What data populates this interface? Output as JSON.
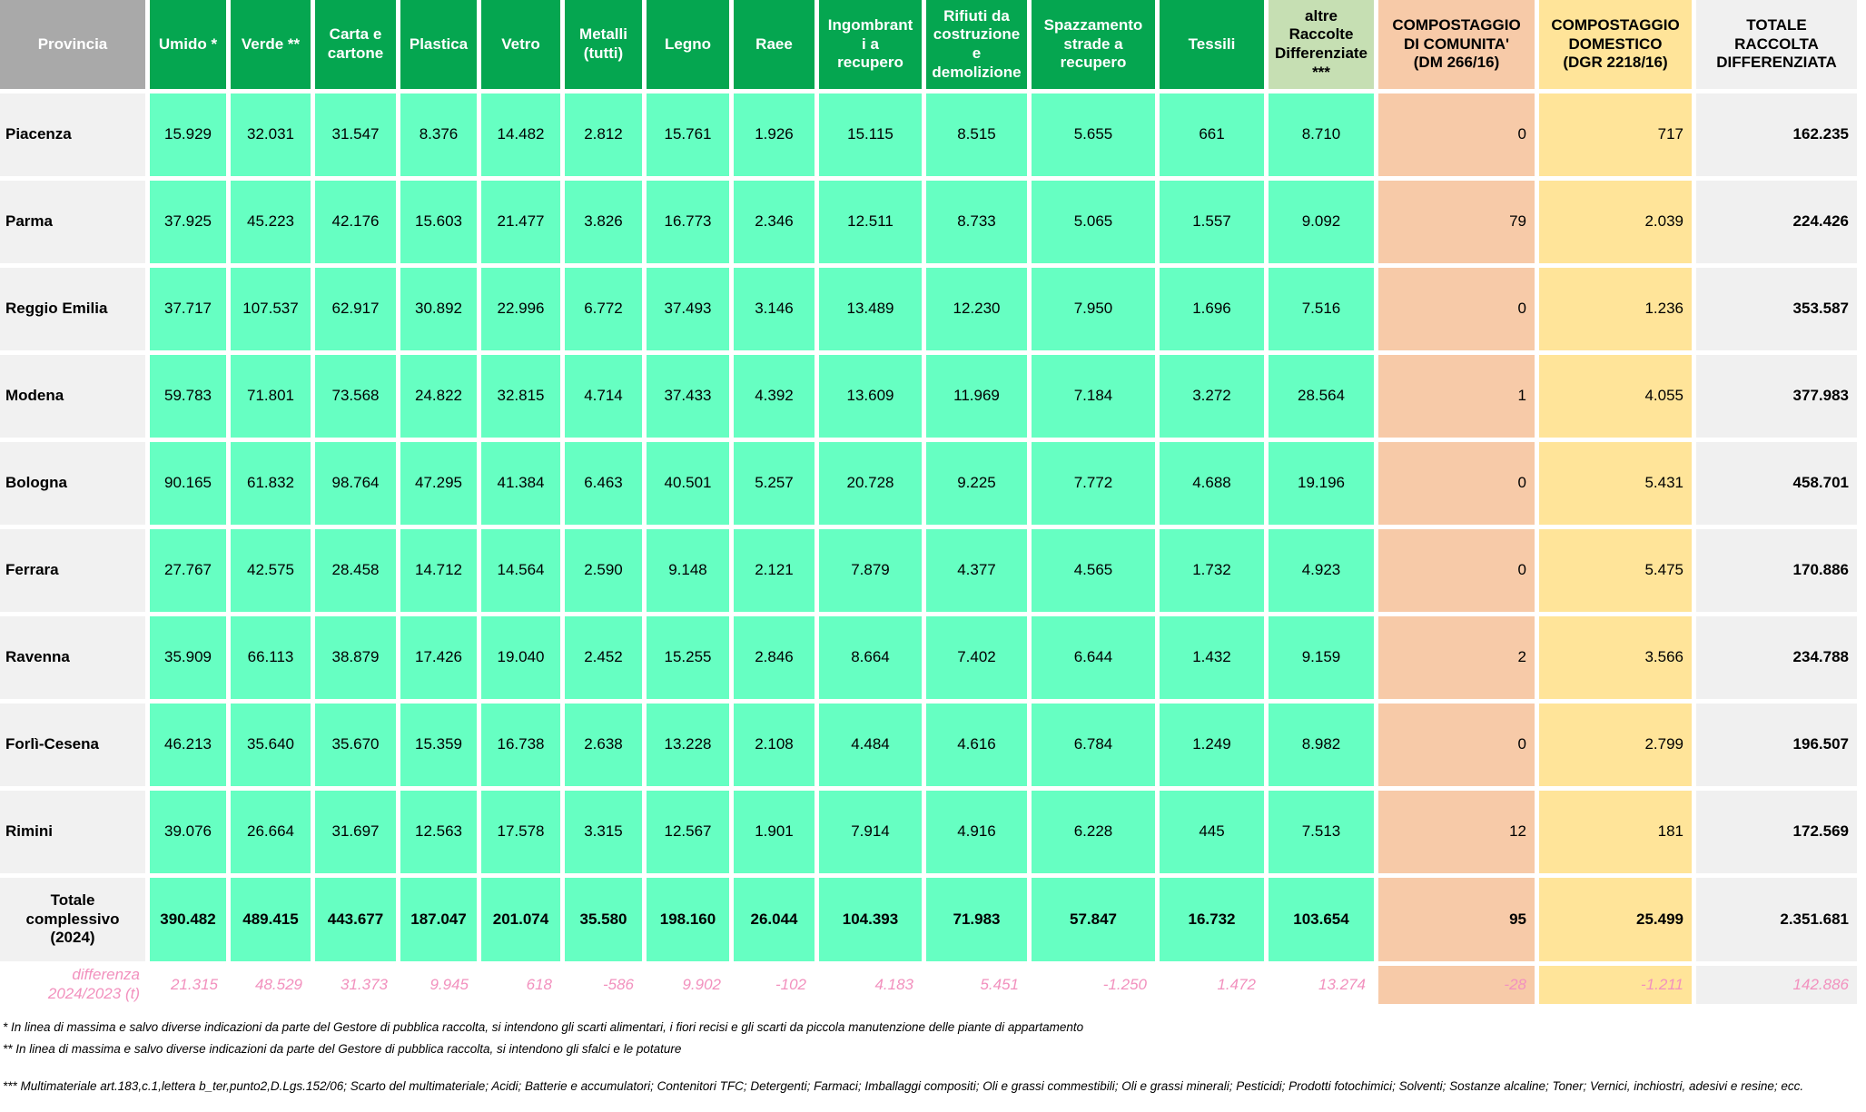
{
  "colors": {
    "header_green": "#05A650",
    "header_gray": "#A9A9A9",
    "data_mint": "#66FFC2",
    "altre_raccolte_green": "#C6DFB3",
    "compostaggio_comunita_peach": "#F7CAA8",
    "compostaggio_domestico_yellow": "#FFE499",
    "row_label_gray": "#F1F1F1",
    "totale_gray": "#F0F0F0",
    "differenza_pink": "#F291BE"
  },
  "chart_data": {
    "type": "table",
    "columns": [
      {
        "key": "provincia",
        "label": "Provincia",
        "style": "gray"
      },
      {
        "key": "umido",
        "label": "Umido *",
        "style": "green"
      },
      {
        "key": "verde",
        "label": "Verde **",
        "style": "green"
      },
      {
        "key": "carta-e-cartone",
        "label": "Carta e\ncartone",
        "style": "green"
      },
      {
        "key": "plastica",
        "label": "Plastica",
        "style": "green"
      },
      {
        "key": "vetro",
        "label": "Vetro",
        "style": "green"
      },
      {
        "key": "metalli",
        "label": "Metalli\n(tutti)",
        "style": "green"
      },
      {
        "key": "legno",
        "label": "Legno",
        "style": "green"
      },
      {
        "key": "raee",
        "label": "Raee",
        "style": "green"
      },
      {
        "key": "ingombranti",
        "label": "Ingombrant\ni a\nrecupero",
        "style": "green"
      },
      {
        "key": "rifiuti-costruzione",
        "label": "Rifiuti da\ncostruzione\ne\ndemolizione",
        "style": "green"
      },
      {
        "key": "spazzamento",
        "label": "Spazzamento\nstrade a\nrecupero",
        "style": "green"
      },
      {
        "key": "tessili",
        "label": "Tessili",
        "style": "green"
      },
      {
        "key": "altre-raccolte",
        "label": "altre\nRaccolte\nDifferenziate\n***",
        "style": "lightgreen"
      },
      {
        "key": "compostaggio-comunita",
        "label": "COMPOSTAGGIO\nDI COMUNITA'\n(DM 266/16)",
        "style": "peach"
      },
      {
        "key": "compostaggio-domestico",
        "label": "COMPOSTAGGIO\nDOMESTICO\n(DGR 2218/16)",
        "style": "yellow"
      },
      {
        "key": "totale",
        "label": "TOTALE\nRACCOLTA\nDIFFERENZIATA",
        "style": "plain"
      }
    ],
    "rows": [
      {
        "provincia": "Piacenza",
        "values": [
          "15.929",
          "32.031",
          "31.547",
          "8.376",
          "14.482",
          "2.812",
          "15.761",
          "1.926",
          "15.115",
          "8.515",
          "5.655",
          "661",
          "8.710",
          "0",
          "717",
          "162.235"
        ]
      },
      {
        "provincia": "Parma",
        "values": [
          "37.925",
          "45.223",
          "42.176",
          "15.603",
          "21.477",
          "3.826",
          "16.773",
          "2.346",
          "12.511",
          "8.733",
          "5.065",
          "1.557",
          "9.092",
          "79",
          "2.039",
          "224.426"
        ]
      },
      {
        "provincia": "Reggio Emilia",
        "values": [
          "37.717",
          "107.537",
          "62.917",
          "30.892",
          "22.996",
          "6.772",
          "37.493",
          "3.146",
          "13.489",
          "12.230",
          "7.950",
          "1.696",
          "7.516",
          "0",
          "1.236",
          "353.587"
        ]
      },
      {
        "provincia": "Modena",
        "values": [
          "59.783",
          "71.801",
          "73.568",
          "24.822",
          "32.815",
          "4.714",
          "37.433",
          "4.392",
          "13.609",
          "11.969",
          "7.184",
          "3.272",
          "28.564",
          "1",
          "4.055",
          "377.983"
        ]
      },
      {
        "provincia": "Bologna",
        "values": [
          "90.165",
          "61.832",
          "98.764",
          "47.295",
          "41.384",
          "6.463",
          "40.501",
          "5.257",
          "20.728",
          "9.225",
          "7.772",
          "4.688",
          "19.196",
          "0",
          "5.431",
          "458.701"
        ]
      },
      {
        "provincia": "Ferrara",
        "values": [
          "27.767",
          "42.575",
          "28.458",
          "14.712",
          "14.564",
          "2.590",
          "9.148",
          "2.121",
          "7.879",
          "4.377",
          "4.565",
          "1.732",
          "4.923",
          "0",
          "5.475",
          "170.886"
        ]
      },
      {
        "provincia": "Ravenna",
        "values": [
          "35.909",
          "66.113",
          "38.879",
          "17.426",
          "19.040",
          "2.452",
          "15.255",
          "2.846",
          "8.664",
          "7.402",
          "6.644",
          "1.432",
          "9.159",
          "2",
          "3.566",
          "234.788"
        ]
      },
      {
        "provincia": "Forlì-Cesena",
        "values": [
          "46.213",
          "35.640",
          "35.670",
          "15.359",
          "16.738",
          "2.638",
          "13.228",
          "2.108",
          "4.484",
          "4.616",
          "6.784",
          "1.249",
          "8.982",
          "0",
          "2.799",
          "196.507"
        ]
      },
      {
        "provincia": "Rimini",
        "values": [
          "39.076",
          "26.664",
          "31.697",
          "12.563",
          "17.578",
          "3.315",
          "12.567",
          "1.901",
          "7.914",
          "4.916",
          "6.228",
          "445",
          "7.513",
          "12",
          "181",
          "172.569"
        ]
      }
    ],
    "total_row": {
      "provincia": "Totale\ncomplessivo\n(2024)",
      "values": [
        "390.482",
        "489.415",
        "443.677",
        "187.047",
        "201.074",
        "35.580",
        "198.160",
        "26.044",
        "104.393",
        "71.983",
        "57.847",
        "16.732",
        "103.654",
        "95",
        "25.499",
        "2.351.681"
      ]
    },
    "diff_row": {
      "provincia": "differenza\n2024/2023 (t)",
      "values": [
        "21.315",
        "48.529",
        "31.373",
        "9.945",
        "618",
        "-586",
        "9.902",
        "-102",
        "4.183",
        "5.451",
        "-1.250",
        "1.472",
        "13.274",
        "-28",
        "-1.211",
        "142.886"
      ]
    },
    "footnotes": [
      "* In linea di massima e salvo diverse indicazioni da parte del Gestore di pubblica raccolta, si intendono gli scarti alimentari, i fiori recisi e gli scarti da piccola manutenzione delle piante di appartamento",
      "** In linea di massima e salvo diverse indicazioni da parte del Gestore di pubblica raccolta, si intendono gli sfalci e le potature",
      "*** Multimateriale art.183,c.1,lettera b_ter,punto2,D.Lgs.152/06; Scarto del multimateriale; Acidi; Batterie e accumulatori; Contenitori TFC; Detergenti; Farmaci; Imballaggi compositi; Oli e grassi commestibili; Oli e grassi minerali; Pesticidi; Prodotti fotochimici; Solventi; Sostanze alcaline; Toner; Vernici, inchiostri, adesivi e resine; ecc."
    ]
  }
}
